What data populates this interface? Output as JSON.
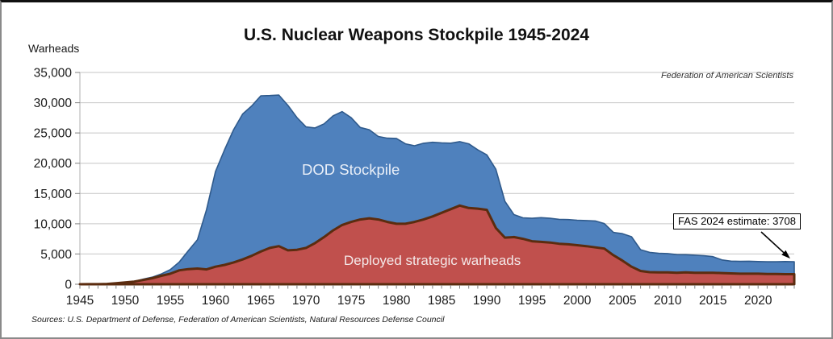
{
  "chart": {
    "title": "U.S. Nuclear Weapons Stockpile 1945-2024",
    "y_axis_label": "Warheads",
    "attribution": "Federation of American Scientists",
    "sources_note": "Sources: U.S. Department of Defense, Federation of American Scientists, Natural Resources Defense Council",
    "annotation": {
      "text": "FAS 2024 estimate: 3708",
      "year": 2024,
      "value": 3708
    },
    "area_labels": {
      "stockpile": "DOD Stockpile",
      "deployed": "Deployed strategic warheads"
    },
    "colors": {
      "stockpile_fill": "#4f81bd",
      "stockpile_stroke": "#2f5a8c",
      "deployed_fill": "#c0504d",
      "deployed_stroke": "#5b2c0f",
      "gridline": "#c6c6c6",
      "axis": "#b0b0b0",
      "tick": "#808080",
      "text": "#1a1a1a"
    }
  },
  "chart_data": {
    "type": "area",
    "title": "U.S. Nuclear Weapons Stockpile 1945-2024",
    "xlabel": "",
    "ylabel": "Warheads",
    "ylim": [
      0,
      35000
    ],
    "y_ticks": [
      0,
      5000,
      10000,
      15000,
      20000,
      25000,
      30000,
      35000
    ],
    "y_tick_labels": [
      "0",
      "5,000",
      "10,000",
      "15,000",
      "20,000",
      "25,000",
      "30,000",
      "35,000"
    ],
    "x_range": [
      1945,
      2024
    ],
    "x_major_tick_interval": 5,
    "x_tick_labels": [
      "1945",
      "1950",
      "1955",
      "1960",
      "1965",
      "1970",
      "1975",
      "1980",
      "1985",
      "1990",
      "1995",
      "2000",
      "2005",
      "2010",
      "2015",
      "2020"
    ],
    "grid": true,
    "legend_position": "labels-inside-areas",
    "years": [
      1945,
      1946,
      1947,
      1948,
      1949,
      1950,
      1951,
      1952,
      1953,
      1954,
      1955,
      1956,
      1957,
      1958,
      1959,
      1960,
      1961,
      1962,
      1963,
      1964,
      1965,
      1966,
      1967,
      1968,
      1969,
      1970,
      1971,
      1972,
      1973,
      1974,
      1975,
      1976,
      1977,
      1978,
      1979,
      1980,
      1981,
      1982,
      1983,
      1984,
      1985,
      1986,
      1987,
      1988,
      1989,
      1990,
      1991,
      1992,
      1993,
      1994,
      1995,
      1996,
      1997,
      1998,
      1999,
      2000,
      2001,
      2002,
      2003,
      2004,
      2005,
      2006,
      2007,
      2008,
      2009,
      2010,
      2011,
      2012,
      2013,
      2014,
      2015,
      2016,
      2017,
      2018,
      2019,
      2020,
      2021,
      2022,
      2023,
      2024
    ],
    "series": [
      {
        "name": "DOD Stockpile",
        "color": "#4f81bd",
        "values": [
          2,
          9,
          13,
          50,
          170,
          299,
          438,
          841,
          1169,
          1703,
          2422,
          3692,
          5543,
          7345,
          12298,
          18638,
          22229,
          25540,
          28133,
          29463,
          31139,
          31175,
          31255,
          29561,
          27552,
          26008,
          25830,
          26516,
          27835,
          28537,
          27519,
          25914,
          25542,
          24418,
          24138,
          24104,
          23208,
          22886,
          23305,
          23459,
          23368,
          23317,
          23575,
          23205,
          22217,
          21392,
          19008,
          13708,
          11511,
          10979,
          10904,
          11011,
          10903,
          10732,
          10685,
          10577,
          10526,
          10457,
          10027,
          8570,
          8360,
          7853,
          5709,
          5273,
          5113,
          5066,
          4897,
          4881,
          4804,
          4717,
          4571,
          4018,
          3822,
          3785,
          3805,
          3750,
          3708,
          3708,
          3748,
          3708
        ]
      },
      {
        "name": "Deployed strategic warheads",
        "color": "#c0504d",
        "values": [
          0,
          9,
          13,
          50,
          170,
          299,
          438,
          700,
          1000,
          1400,
          1750,
          2300,
          2500,
          2600,
          2450,
          2900,
          3200,
          3600,
          4100,
          4700,
          5400,
          6000,
          6300,
          5600,
          5700,
          6000,
          6800,
          7800,
          8900,
          9800,
          10300,
          10700,
          10900,
          10700,
          10300,
          10000,
          10000,
          10300,
          10700,
          11200,
          11800,
          12400,
          13000,
          12600,
          12500,
          12300,
          9300,
          7700,
          7800,
          7500,
          7100,
          7000,
          6900,
          6700,
          6600,
          6450,
          6300,
          6100,
          5900,
          4800,
          3900,
          2900,
          2200,
          2000,
          1950,
          1950,
          1900,
          1950,
          1900,
          1900,
          1900,
          1850,
          1800,
          1750,
          1750,
          1750,
          1700,
          1700,
          1670,
          1670
        ]
      }
    ]
  }
}
